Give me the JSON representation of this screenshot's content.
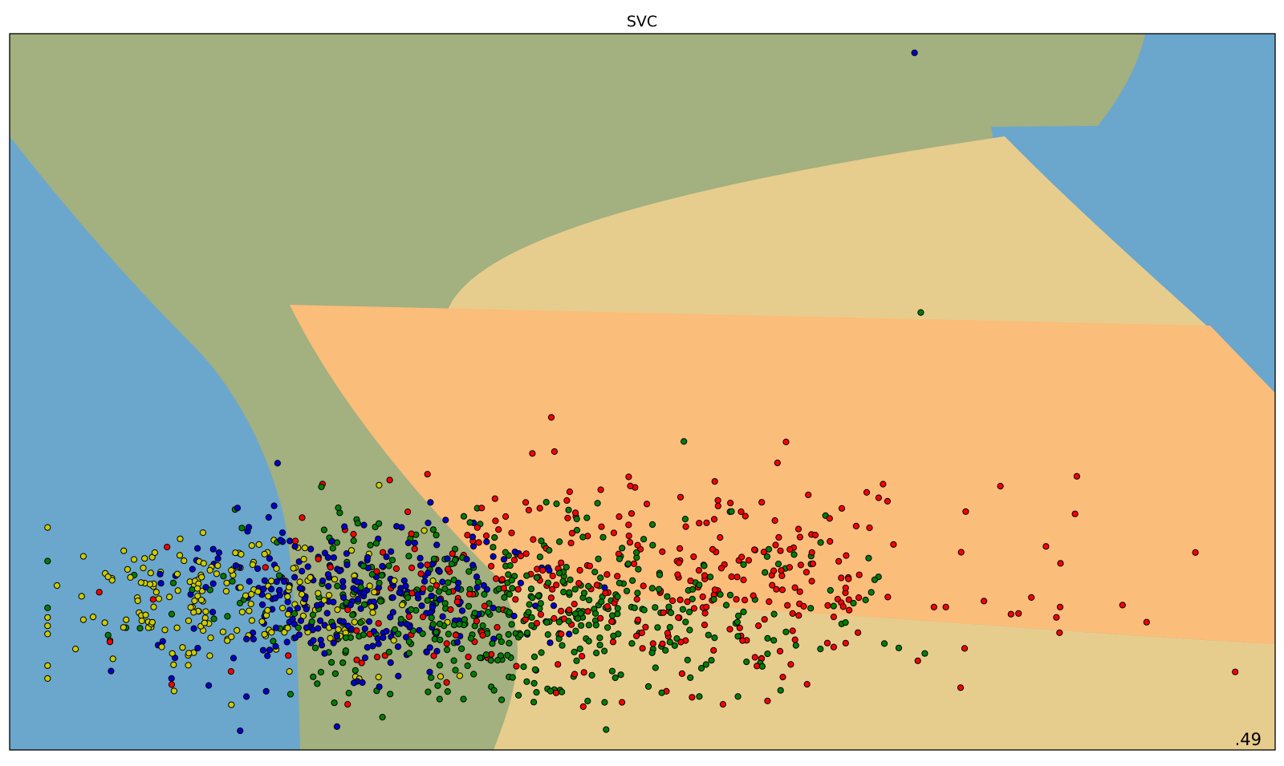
{
  "chart_data": {
    "type": "scatter",
    "title": "SVC",
    "annotation": ".49",
    "xlabel": "",
    "ylabel": "",
    "grid": false,
    "legend": "none",
    "xlim": [
      0,
      10
    ],
    "ylim": [
      0,
      5.6
    ],
    "colors": {
      "region_blue": "#6ba6cd",
      "region_olive": "#a3b07f",
      "region_tan": "#e7cd8d",
      "region_orange": "#fbbd7a",
      "point_blue": "#0000cc",
      "point_yellow": "#cccc00",
      "point_green": "#007f00",
      "point_red": "#ff0000"
    },
    "classes": [
      "blue",
      "yellow",
      "green",
      "red"
    ],
    "outliers": [
      {
        "class": "blue",
        "x": 7.15,
        "y": 5.45
      },
      {
        "class": "green",
        "x": 7.2,
        "y": 3.42
      }
    ],
    "clusters": [
      {
        "class": "yellow",
        "n": 210,
        "cx": 1.75,
        "cy": 1.15,
        "sx": 0.7,
        "sy": 0.28
      },
      {
        "class": "blue",
        "n": 290,
        "cx": 2.75,
        "cy": 1.2,
        "sx": 0.75,
        "sy": 0.3
      },
      {
        "class": "green",
        "n": 480,
        "cx": 4.1,
        "cy": 1.1,
        "sx": 1.2,
        "sy": 0.36
      },
      {
        "class": "red",
        "n": 360,
        "cx": 4.9,
        "cy": 1.3,
        "sx": 1.5,
        "sy": 0.4
      }
    ]
  }
}
